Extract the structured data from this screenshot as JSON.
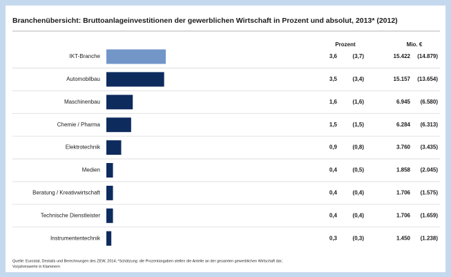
{
  "chart_data": {
    "type": "bar",
    "orientation": "horizontal",
    "title": "Branchenübersicht: Bruttoanlageinvestitionen der gewerblichen Wirtschaft in Prozent und absolut, 2013* (2012)",
    "percent_header": "Prozent",
    "absolute_header": "Mio. €",
    "categories": [
      "IKT-Branche",
      "Automobilbau",
      "Maschinenbau",
      "Chemie / Pharma",
      "Elektrotechnik",
      "Medien",
      "Beratung / Kreativwirtschaft",
      "Technische Dienstleister",
      "Instrumententechnik"
    ],
    "values": [
      3.6,
      3.5,
      1.6,
      1.5,
      0.9,
      0.4,
      0.4,
      0.4,
      0.3
    ],
    "value_labels": [
      "3,6",
      "3,5",
      "1,6",
      "1,5",
      "0,9",
      "0,4",
      "0,4",
      "0,4",
      "0,3"
    ],
    "previous_percent_labels": [
      "(3,7)",
      "(3,4)",
      "(1,6)",
      "(1,5)",
      "(0,8)",
      "(0,5)",
      "(0,4)",
      "(0,4)",
      "(0,3)"
    ],
    "absolute_labels": [
      "15.422",
      "15.157",
      "6.945",
      "6.284",
      "3.760",
      "1.858",
      "1.706",
      "1.706",
      "1.450"
    ],
    "previous_absolute_labels": [
      "(14.879)",
      "(13.654)",
      "(6.580)",
      "(6.313)",
      "(3.435)",
      "(2.045)",
      "(1.575)",
      "(1.659)",
      "(1.238)"
    ],
    "colors": [
      "#7396c8",
      "#0e2b5e",
      "#0e2b5e",
      "#0e2b5e",
      "#0e2b5e",
      "#0e2b5e",
      "#0e2b5e",
      "#0e2b5e",
      "#0e2b5e"
    ],
    "xlim": [
      0,
      10
    ],
    "footnote": [
      "Quelle: Eurostat, Destatis und Berechnungen des ZEW, 2014; *Schätzung: die Prozentangaben stellen die Anteile an der gesamten gewerblichen Wirtschaft dar;",
      "Vorjahreswerte in Klammern"
    ]
  }
}
